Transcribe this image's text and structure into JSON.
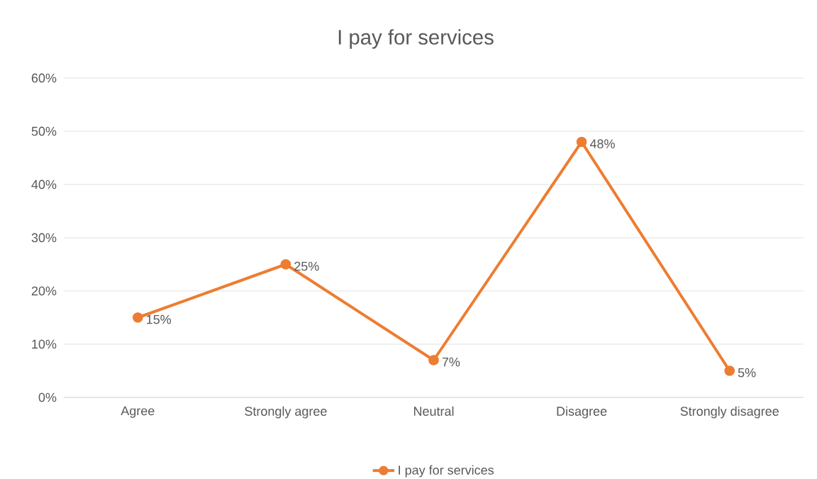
{
  "chart_data": {
    "type": "line",
    "title": "I pay for services",
    "categories": [
      "Agree",
      "Strongly agree",
      "Neutral",
      "Disagree",
      "Strongly disagree"
    ],
    "series": [
      {
        "name": "I pay for services",
        "color": "#ed7d31",
        "values": [
          15,
          25,
          7,
          48,
          5
        ],
        "value_labels": [
          "15%",
          "25%",
          "7%",
          "48%",
          "5%"
        ]
      }
    ],
    "ylim": [
      0,
      60
    ],
    "yticks": [
      {
        "value": 0,
        "label": "0%"
      },
      {
        "value": 10,
        "label": "10%"
      },
      {
        "value": 20,
        "label": "20%"
      },
      {
        "value": 30,
        "label": "30%"
      },
      {
        "value": 40,
        "label": "40%"
      },
      {
        "value": 50,
        "label": "50%"
      },
      {
        "value": 60,
        "label": "60%"
      }
    ],
    "grid": "y",
    "legend": "bottom",
    "marker": "circle"
  }
}
